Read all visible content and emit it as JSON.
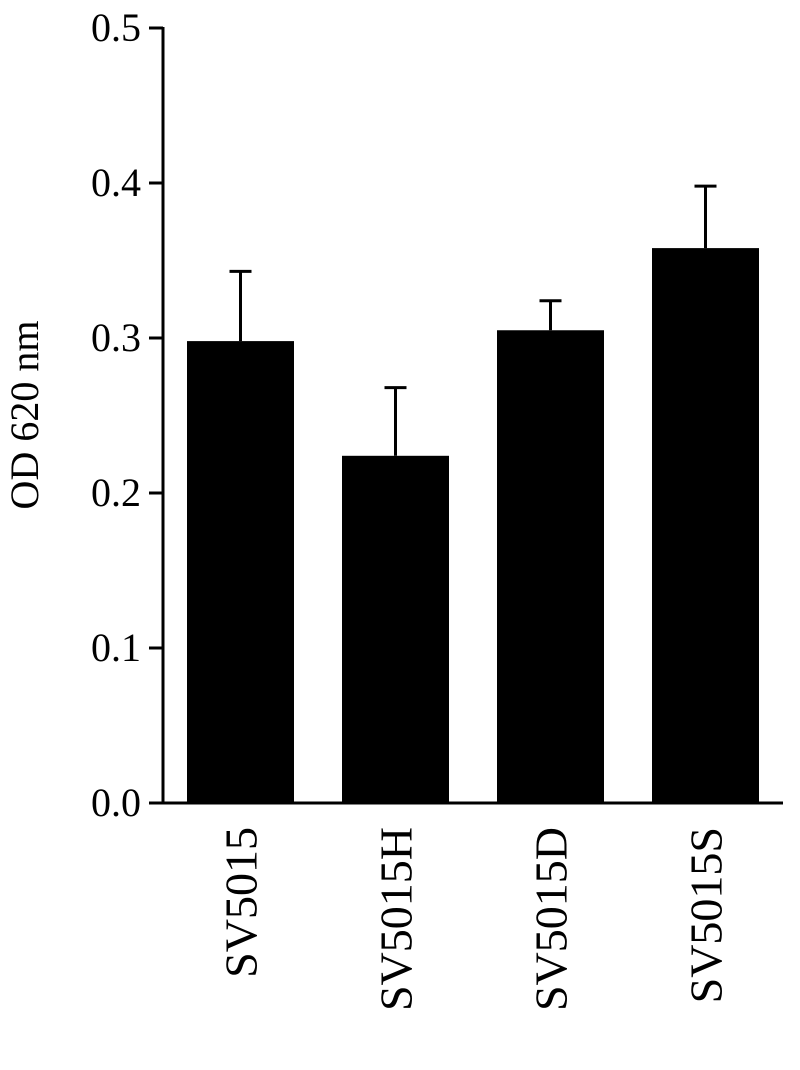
{
  "chart_data": {
    "type": "bar",
    "categories": [
      "SV5015",
      "SV5015H",
      "SV5015D",
      "SV5015S"
    ],
    "values": [
      0.298,
      0.224,
      0.305,
      0.358
    ],
    "error_upper": [
      0.343,
      0.268,
      0.324,
      0.398
    ],
    "title": "",
    "xlabel": "",
    "ylabel": "OD 620 nm",
    "ylim": [
      0.0,
      0.5
    ],
    "yticks": [
      "0.0",
      "0.1",
      "0.2",
      "0.3",
      "0.4",
      "0.5"
    ],
    "grid": false,
    "legend": "none",
    "bar_color": "#000000"
  }
}
